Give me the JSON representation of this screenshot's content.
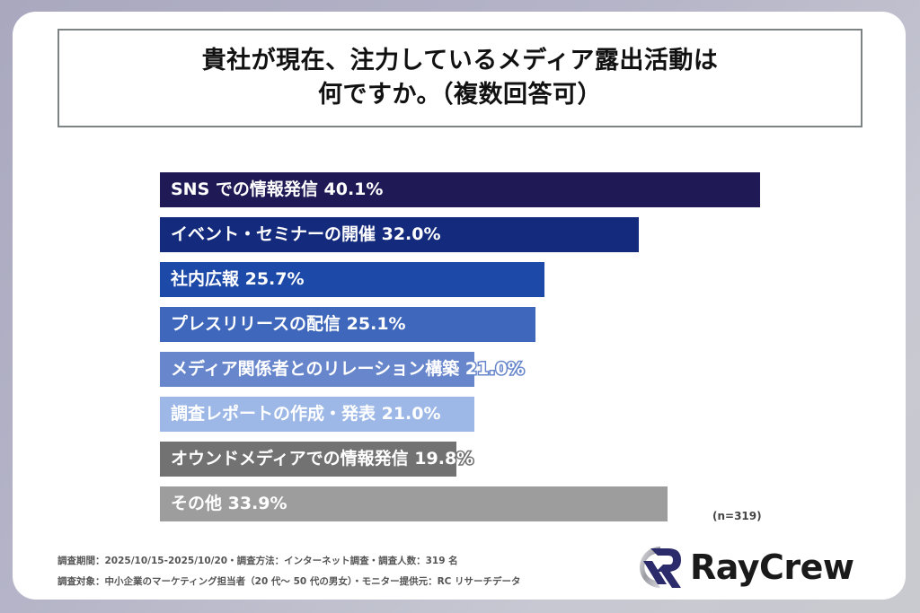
{
  "title": {
    "line1": "貴社が現在、注力しているメディア露出活動は",
    "line2": "何ですか。（複数回答可）"
  },
  "chart_data": {
    "type": "bar",
    "orientation": "horizontal",
    "title": "貴社が現在、注力しているメディア露出活動は何ですか。（複数回答可）",
    "xlabel": "",
    "ylabel": "",
    "unit": "%",
    "grid": false,
    "legend": false,
    "categories": [
      "SNS での情報発信",
      "イベント・セミナーの開催",
      "社内広報",
      "プレスリリースの配信",
      "メディア関係者とのリレーション構築",
      "調査レポートの作成・発表",
      "オウンドメディアでの情報発信",
      "その他"
    ],
    "values": [
      40.1,
      32.0,
      25.7,
      25.1,
      21.0,
      21.0,
      19.8,
      33.9
    ],
    "value_labels": [
      "40.1%",
      "32.0%",
      "25.7%",
      "25.1%",
      "21.0%",
      "21.0%",
      "19.8%",
      "33.9%"
    ],
    "colors": [
      "#1f1a55",
      "#142a7c",
      "#1d4aa8",
      "#3f67bb",
      "#6886cb",
      "#9db8e6",
      "#727272",
      "#9d9d9d"
    ],
    "sample_size": "(n=319)"
  },
  "n_label": "(n=319)",
  "footer": {
    "line1": "調査期間：2025/10/15-2025/10/20・調査方法：インターネット調査・調査人数：319 名",
    "line2": "調査対象：中小企業のマーケティング担当者（20 代～ 50 代の男女）・モニター提供元：RC リサーチデータ"
  },
  "logo": {
    "text": "RayCrew",
    "icon": "raycrew-r-logo-icon"
  }
}
